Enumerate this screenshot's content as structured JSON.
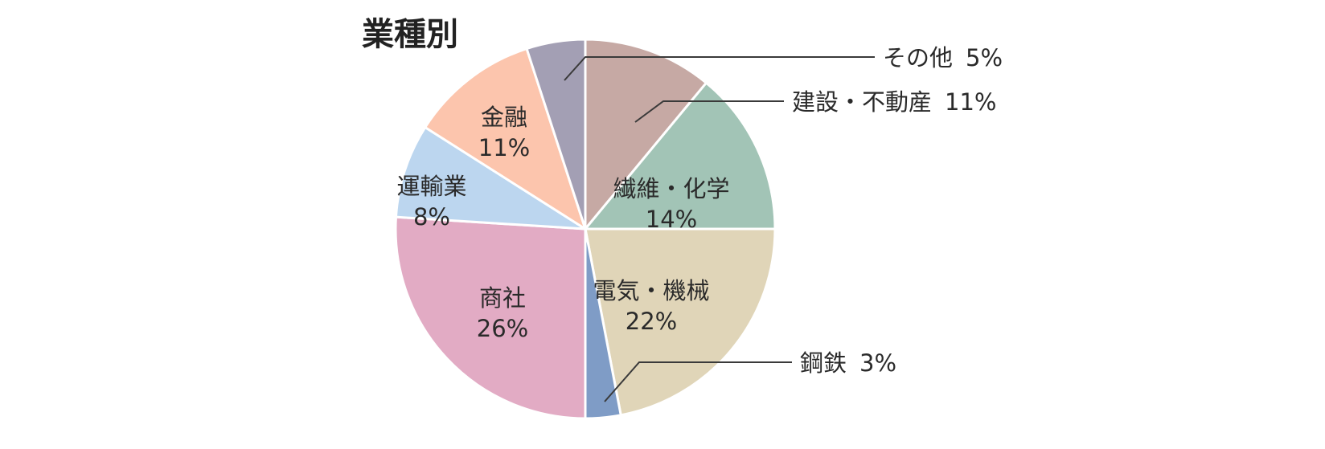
{
  "chart_data": {
    "type": "pie",
    "title": "業種別",
    "start": "12 o'clock",
    "direction": "clockwise",
    "slices": [
      {
        "name": "建設・不動産",
        "value": 11,
        "label": "建設・不動産",
        "pct": "11%",
        "color": "#c6a9a4",
        "label_placement": "outside"
      },
      {
        "name": "繊維・化学",
        "value": 14,
        "label": "繊維・化学",
        "pct": "14%",
        "color": "#a2c4b6",
        "label_placement": "inside"
      },
      {
        "name": "電気・機械",
        "value": 22,
        "label": "電気・機械",
        "pct": "22%",
        "color": "#e0d5b8",
        "label_placement": "inside"
      },
      {
        "name": "鋼鉄",
        "value": 3,
        "label": "鋼鉄",
        "pct": "3%",
        "color": "#7f9cc6",
        "label_placement": "outside"
      },
      {
        "name": "商社",
        "value": 26,
        "label": "商社",
        "pct": "26%",
        "color": "#e2abc4",
        "label_placement": "inside"
      },
      {
        "name": "運輸業",
        "value": 8,
        "label": "運輸業",
        "pct": "8%",
        "color": "#bcd6ef",
        "label_placement": "inside"
      },
      {
        "name": "金融",
        "value": 11,
        "label": "金融",
        "pct": "11%",
        "color": "#fcc5ad",
        "label_placement": "inside"
      },
      {
        "name": "その他",
        "value": 5,
        "label": "その他",
        "pct": "5%",
        "color": "#a39fb4",
        "label_placement": "outside"
      }
    ]
  }
}
